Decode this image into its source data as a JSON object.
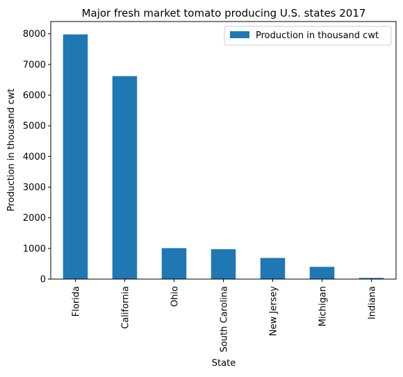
{
  "chart_data": {
    "type": "bar",
    "title": "Major fresh market tomato producing U.S. states 2017",
    "xlabel": "State",
    "ylabel": "Production in thousand cwt",
    "categories": [
      "Florida",
      "California",
      "Ohio",
      "South Carolina",
      "New Jersey",
      "Michigan",
      "Indiana"
    ],
    "series": [
      {
        "name": "Production in thousand cwt",
        "values": [
          7980,
          6620,
          1010,
          975,
          690,
          400,
          40
        ],
        "color": "#1f77b4"
      }
    ],
    "ylim": [
      0,
      8400
    ],
    "yticks": [
      0,
      1000,
      2000,
      3000,
      4000,
      5000,
      6000,
      7000,
      8000
    ],
    "legend_position": "top-right",
    "grid": false
  }
}
